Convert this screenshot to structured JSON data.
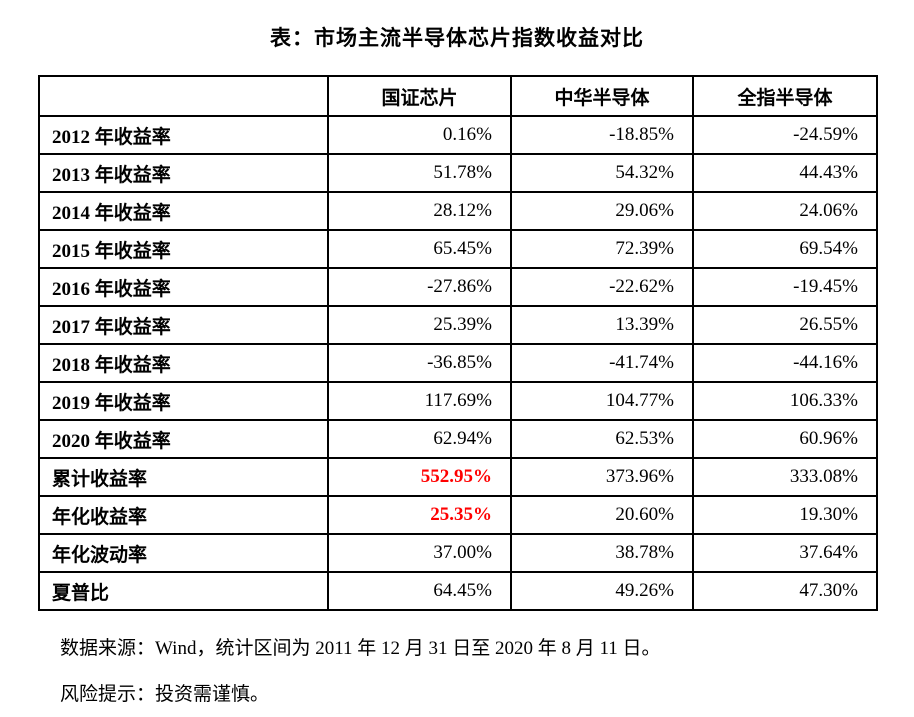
{
  "title": "表：市场主流半导体芯片指数收益对比",
  "colors": {
    "background": "#ffffff",
    "text": "#000000",
    "border": "#000000",
    "highlight": "#ff0000"
  },
  "table": {
    "headers": [
      "国证芯片",
      "中华半导体",
      "全指半导体"
    ],
    "rows": [
      {
        "label": "2012 年收益率",
        "values": [
          "0.16%",
          "-18.85%",
          "-24.59%"
        ],
        "highlight_first": false
      },
      {
        "label": "2013 年收益率",
        "values": [
          "51.78%",
          "54.32%",
          "44.43%"
        ],
        "highlight_first": false
      },
      {
        "label": "2014 年收益率",
        "values": [
          "28.12%",
          "29.06%",
          "24.06%"
        ],
        "highlight_first": false
      },
      {
        "label": "2015 年收益率",
        "values": [
          "65.45%",
          "72.39%",
          "69.54%"
        ],
        "highlight_first": false
      },
      {
        "label": "2016 年收益率",
        "values": [
          "-27.86%",
          "-22.62%",
          "-19.45%"
        ],
        "highlight_first": false
      },
      {
        "label": "2017 年收益率",
        "values": [
          "25.39%",
          "13.39%",
          "26.55%"
        ],
        "highlight_first": false
      },
      {
        "label": "2018 年收益率",
        "values": [
          "-36.85%",
          "-41.74%",
          "-44.16%"
        ],
        "highlight_first": false
      },
      {
        "label": "2019 年收益率",
        "values": [
          "117.69%",
          "104.77%",
          "106.33%"
        ],
        "highlight_first": false
      },
      {
        "label": "2020 年收益率",
        "values": [
          "62.94%",
          "62.53%",
          "60.96%"
        ],
        "highlight_first": false
      },
      {
        "label": "累计收益率",
        "values": [
          "552.95%",
          "373.96%",
          "333.08%"
        ],
        "highlight_first": true
      },
      {
        "label": "年化收益率",
        "values": [
          "25.35%",
          "20.60%",
          "19.30%"
        ],
        "highlight_first": true
      },
      {
        "label": "年化波动率",
        "values": [
          "37.00%",
          "38.78%",
          "37.64%"
        ],
        "highlight_first": false
      },
      {
        "label": "夏普比",
        "values": [
          "64.45%",
          "49.26%",
          "47.30%"
        ],
        "highlight_first": false
      }
    ]
  },
  "notes": {
    "source": "数据来源：Wind，统计区间为 2011 年 12 月 31 日至 2020 年 8 月 11 日。",
    "risk": "风险提示：投资需谨慎。"
  },
  "chart_data": {
    "type": "table",
    "title": "表：市场主流半导体芯片指数收益对比",
    "categories": [
      "2012 年收益率",
      "2013 年收益率",
      "2014 年收益率",
      "2015 年收益率",
      "2016 年收益率",
      "2017 年收益率",
      "2018 年收益率",
      "2019 年收益率",
      "2020 年收益率",
      "累计收益率",
      "年化收益率",
      "年化波动率",
      "夏普比"
    ],
    "series": [
      {
        "name": "国证芯片",
        "values": [
          0.16,
          51.78,
          28.12,
          65.45,
          -27.86,
          25.39,
          -36.85,
          117.69,
          62.94,
          552.95,
          25.35,
          37.0,
          64.45
        ]
      },
      {
        "name": "中华半导体",
        "values": [
          -18.85,
          54.32,
          29.06,
          72.39,
          -22.62,
          13.39,
          -41.74,
          104.77,
          62.53,
          373.96,
          20.6,
          38.78,
          49.26
        ]
      },
      {
        "name": "全指半导体",
        "values": [
          -24.59,
          44.43,
          24.06,
          69.54,
          -19.45,
          26.55,
          -44.16,
          106.33,
          60.96,
          333.08,
          19.3,
          37.64,
          47.3
        ]
      }
    ],
    "unit": "%",
    "highlighted_values": [
      "国证芯片 累计收益率 552.95%",
      "国证芯片 年化收益率 25.35%"
    ]
  }
}
